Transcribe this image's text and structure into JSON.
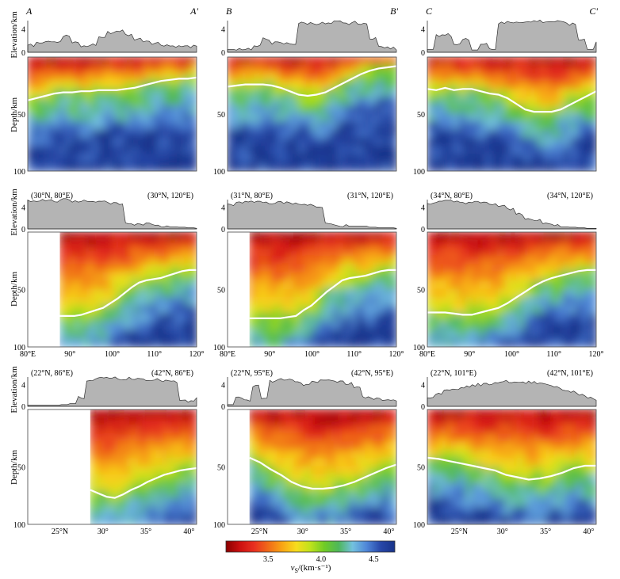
{
  "chart_data": {
    "type": "heatmap",
    "colorbar": {
      "label": "v_S/(km·s⁻¹)",
      "label_main": "v",
      "label_sub": "S",
      "label_unit": "/(km·s⁻¹)",
      "ticks": [
        "3.5",
        "4.0",
        "4.5"
      ],
      "range": [
        3.1,
        4.7
      ],
      "colors": [
        "#8b0000",
        "#cc1010",
        "#e83020",
        "#f06a18",
        "#f8a514",
        "#f7dc1e",
        "#bfe21c",
        "#6fcb26",
        "#4eb75a",
        "#73c1df",
        "#4f86d8",
        "#2747a8",
        "#18338a"
      ]
    },
    "y_depth_label": "Depth/km",
    "y_elev_label": "Elevation/km",
    "depth_ticks": [
      "50",
      "100"
    ],
    "elev_ticks": [
      "4",
      "0"
    ],
    "panels": [
      {
        "id": "A",
        "left_label": "A",
        "right_label": "A'",
        "x_ticks": [],
        "moho_depth": [
          38,
          36,
          34,
          32,
          31,
          31,
          30,
          30,
          29,
          29,
          29,
          28,
          27,
          25,
          23,
          21,
          20,
          19,
          19,
          18
        ],
        "start_frac": 0,
        "elevation": [
          1.2,
          1.8,
          2.0,
          1.9,
          2.8,
          1.6,
          1.0,
          1.3,
          2.6,
          3.4,
          3.7,
          3.0,
          2.3,
          2.0,
          1.6,
          1.3,
          1.1,
          1.0,
          1.0,
          0.9
        ]
      },
      {
        "id": "B",
        "left_label": "B",
        "right_label": "B'",
        "x_ticks": [],
        "moho_depth": [
          26,
          25,
          24,
          24,
          24,
          25,
          27,
          30,
          33,
          34,
          33,
          31,
          27,
          23,
          19,
          15,
          12,
          10,
          9,
          8
        ],
        "start_frac": 0,
        "elevation": [
          0.5,
          0.6,
          0.6,
          1.0,
          2.3,
          1.6,
          1.5,
          1.5,
          5.0,
          5.0,
          5.0,
          4.9,
          5.2,
          4.9,
          5.1,
          4.8,
          2.5,
          0.9,
          0.7,
          0.4
        ]
      },
      {
        "id": "C",
        "left_label": "C",
        "right_label": "C'",
        "x_ticks": [],
        "moho_depth": [
          28,
          29,
          27,
          29,
          28,
          28,
          30,
          32,
          33,
          36,
          41,
          46,
          48,
          48,
          48,
          46,
          42,
          38,
          34,
          30
        ],
        "start_frac": 0,
        "elevation": [
          0.5,
          2.8,
          3.0,
          1.4,
          2.2,
          0.4,
          1.6,
          0.6,
          5.0,
          5.2,
          5.3,
          5.2,
          5.4,
          5.3,
          5.3,
          5.1,
          4.8,
          2.2,
          0.5,
          2.0
        ]
      },
      {
        "id": "D",
        "left_label": "(30°N, 80°E)",
        "right_label": "(30°N, 120°E)",
        "x_ticks": [
          "80°E",
          "90°",
          "100°",
          "110°",
          "120°"
        ],
        "moho_depth": [
          73,
          73,
          73,
          72,
          70,
          68,
          66,
          62,
          58,
          53,
          48,
          44,
          42,
          41,
          40,
          38,
          36,
          34,
          33,
          33
        ],
        "start_frac": 0.19,
        "elevation": [
          5.2,
          5.3,
          5.4,
          5.2,
          5.5,
          5.1,
          5.3,
          5.0,
          5.2,
          4.8,
          4.6,
          1.0,
          0.8,
          0.9,
          0.8,
          0.6,
          0.4,
          0.3,
          0.2,
          0.1
        ]
      },
      {
        "id": "E",
        "left_label": "(31°N, 80°E)",
        "right_label": "(31°N, 120°E)",
        "x_ticks": [
          "80°E",
          "90°",
          "100°",
          "110°",
          "120°"
        ],
        "moho_depth": [
          75,
          75,
          75,
          75,
          75,
          74,
          73,
          68,
          64,
          58,
          52,
          47,
          42,
          40,
          39,
          38,
          36,
          34,
          33,
          33
        ],
        "start_frac": 0.13,
        "elevation": [
          4.4,
          5.0,
          4.9,
          5.1,
          4.9,
          4.8,
          4.9,
          4.7,
          4.6,
          4.5,
          4.0,
          0.9,
          0.7,
          0.6,
          0.5,
          0.5,
          0.3,
          0.2,
          0.2,
          0.1
        ]
      },
      {
        "id": "F",
        "left_label": "(34°N, 80°E)",
        "right_label": "(34°N, 120°E)",
        "x_ticks": [
          "80°E",
          "90°",
          "100°",
          "110°",
          "120°"
        ],
        "moho_depth": [
          70,
          70,
          70,
          71,
          72,
          72,
          70,
          68,
          66,
          62,
          57,
          52,
          47,
          43,
          40,
          38,
          36,
          34,
          33,
          33
        ],
        "start_frac": 0,
        "elevation": [
          4.8,
          5.0,
          5.1,
          5.0,
          4.9,
          4.9,
          4.8,
          4.6,
          4.2,
          3.6,
          2.8,
          2.0,
          1.5,
          1.0,
          0.7,
          0.4,
          0.3,
          0.2,
          0.1,
          0.1
        ]
      },
      {
        "id": "G",
        "left_label": "(22°N, 86°E)",
        "right_label": "(42°N, 86°E)",
        "x_ticks": [
          "25°N",
          "30°",
          "35°",
          "40°"
        ],
        "moho_depth": [
          70,
          73,
          76,
          77,
          74,
          70,
          67,
          63,
          60,
          57,
          55,
          53,
          52,
          51
        ],
        "start_frac": 0.37,
        "elevation": [
          0.2,
          0.2,
          0.2,
          0.2,
          0.3,
          0.5,
          1.6,
          4.9,
          5.2,
          5.1,
          5.3,
          5.0,
          5.2,
          5.1,
          5.0,
          4.9,
          4.7,
          4.5,
          1.0,
          0.9,
          1.4
        ]
      },
      {
        "id": "H",
        "left_label": "(22°N, 95°E)",
        "right_label": "(42°N, 95°E)",
        "x_ticks": [
          "25°N",
          "30°",
          "35°",
          "40°"
        ],
        "moho_depth": [
          42,
          46,
          52,
          57,
          63,
          67,
          69,
          69,
          68,
          66,
          63,
          59,
          55,
          51,
          48
        ],
        "start_frac": 0.13,
        "elevation": [
          0.3,
          1.6,
          1.0,
          3.8,
          1.4,
          4.6,
          5.0,
          4.9,
          4.5,
          4.0,
          4.6,
          5.0,
          4.8,
          4.6,
          4.2,
          3.6,
          1.8,
          1.5,
          1.3,
          1.1,
          0.9
        ]
      },
      {
        "id": "I",
        "left_label": "(22°N, 101°E)",
        "right_label": "(42°N, 101°E)",
        "x_ticks": [
          "25°N",
          "30°",
          "35°",
          "40°"
        ],
        "moho_depth": [
          42,
          43,
          45,
          47,
          49,
          51,
          53,
          57,
          59,
          61,
          60,
          58,
          55,
          51,
          49,
          49
        ],
        "start_frac": 0,
        "elevation": [
          1.8,
          2.4,
          2.9,
          3.3,
          3.6,
          3.8,
          4.0,
          4.2,
          4.5,
          4.6,
          4.4,
          4.3,
          4.5,
          4.4,
          4.0,
          3.6,
          3.0,
          2.6,
          2.0,
          1.6,
          1.3
        ]
      }
    ]
  }
}
